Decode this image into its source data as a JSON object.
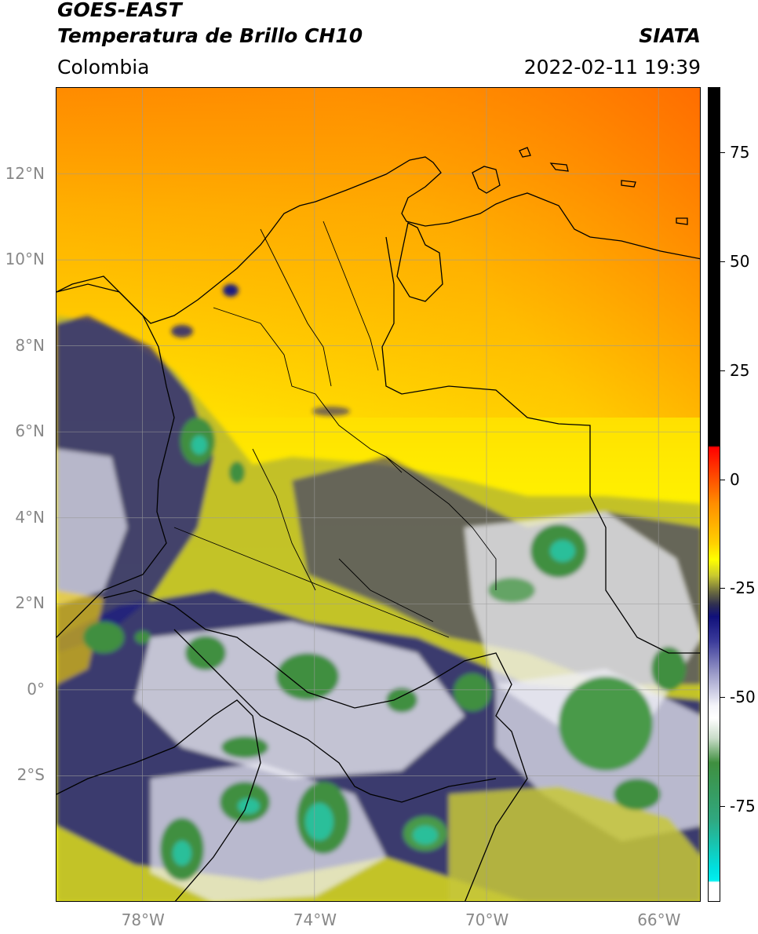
{
  "header": {
    "title_line1": "GOES-EAST",
    "title_line2": "Temperatura de Brillo CH10",
    "region": "Colombia",
    "source": "SIATA",
    "timestamp": "2022-02-11 19:39"
  },
  "map": {
    "lat_ticks": [
      {
        "value": 12,
        "label": "12°N"
      },
      {
        "value": 10,
        "label": "10°N"
      },
      {
        "value": 8,
        "label": "8°N"
      },
      {
        "value": 6,
        "label": "6°N"
      },
      {
        "value": 4,
        "label": "4°N"
      },
      {
        "value": 2,
        "label": "2°N"
      },
      {
        "value": 0,
        "label": "0°"
      },
      {
        "value": -2,
        "label": "2°S"
      }
    ],
    "lon_ticks": [
      {
        "value": -78,
        "label": "78°W"
      },
      {
        "value": -74,
        "label": "74°W"
      },
      {
        "value": -70,
        "label": "70°W"
      },
      {
        "value": -66,
        "label": "66°W"
      }
    ],
    "lat_range": [
      -4.95,
      14.0
    ],
    "lon_range": [
      -80.0,
      -65.0
    ],
    "colors": {
      "warm_top": "#ff7b00",
      "warm": "#ffc400",
      "yellow": "#ffff00",
      "olive": "#b5b52a",
      "navy": "#13137a",
      "white": "#ffffff",
      "green": "#3f8f3f",
      "teal": "#2abf9a",
      "coast": "#000000"
    }
  },
  "colorbar": {
    "range": [
      -97,
      90
    ],
    "ticks": [
      {
        "value": 75,
        "label": "75"
      },
      {
        "value": 50,
        "label": "50"
      },
      {
        "value": 25,
        "label": "25"
      },
      {
        "value": 0,
        "label": "0"
      },
      {
        "value": -25,
        "label": "-25"
      },
      {
        "value": -50,
        "label": "-50"
      },
      {
        "value": -75,
        "label": "-75"
      }
    ]
  }
}
